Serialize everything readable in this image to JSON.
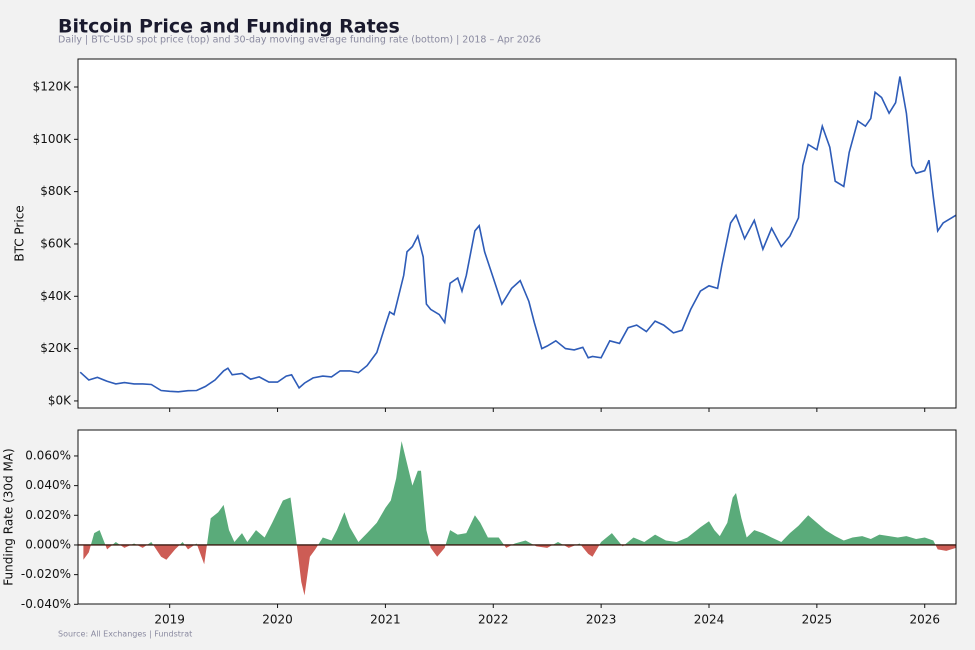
{
  "title": "Bitcoin Price and Funding Rates",
  "subtitle": "Daily  |  BTC-USD spot price (top) and 30-day moving average funding rate (bottom)  |  2018 – Apr 2026",
  "source": "Source: All Exchanges | Fundstrat",
  "chart_data": [
    {
      "type": "line",
      "ylabel": "BTC Price",
      "x": [
        2018.17,
        2018.25,
        2018.33,
        2018.42,
        2018.5,
        2018.58,
        2018.67,
        2018.75,
        2018.83,
        2018.92,
        2019.0,
        2019.08,
        2019.17,
        2019.25,
        2019.33,
        2019.42,
        2019.5,
        2019.54,
        2019.58,
        2019.67,
        2019.75,
        2019.83,
        2019.92,
        2020.0,
        2020.08,
        2020.13,
        2020.2,
        2020.25,
        2020.33,
        2020.42,
        2020.5,
        2020.58,
        2020.67,
        2020.75,
        2020.83,
        2020.92,
        2021.0,
        2021.04,
        2021.08,
        2021.17,
        2021.2,
        2021.25,
        2021.3,
        2021.35,
        2021.38,
        2021.42,
        2021.5,
        2021.55,
        2021.6,
        2021.67,
        2021.71,
        2021.75,
        2021.83,
        2021.87,
        2021.92,
        2022.0,
        2022.08,
        2022.17,
        2022.25,
        2022.33,
        2022.38,
        2022.45,
        2022.5,
        2022.58,
        2022.67,
        2022.75,
        2022.83,
        2022.88,
        2022.92,
        2023.0,
        2023.08,
        2023.17,
        2023.25,
        2023.33,
        2023.42,
        2023.5,
        2023.58,
        2023.67,
        2023.75,
        2023.83,
        2023.92,
        2024.0,
        2024.08,
        2024.12,
        2024.2,
        2024.25,
        2024.33,
        2024.42,
        2024.5,
        2024.58,
        2024.67,
        2024.75,
        2024.83,
        2024.87,
        2024.92,
        2025.0,
        2025.05,
        2025.12,
        2025.17,
        2025.25,
        2025.3,
        2025.38,
        2025.45,
        2025.5,
        2025.54,
        2025.6,
        2025.67,
        2025.73,
        2025.77,
        2025.83,
        2025.88,
        2025.92,
        2026.0,
        2026.04,
        2026.08,
        2026.12,
        2026.17,
        2026.25,
        2026.29
      ],
      "series": [
        {
          "name": "BTC Price",
          "color": "#2e5cb8",
          "values": [
            11000,
            8000,
            9000,
            7500,
            6500,
            7000,
            6500,
            6500,
            6300,
            4000,
            3700,
            3500,
            3900,
            4000,
            5500,
            8000,
            11500,
            12500,
            10000,
            10500,
            8300,
            9200,
            7200,
            7200,
            9500,
            10000,
            5000,
            6800,
            8800,
            9500,
            9200,
            11500,
            11500,
            10800,
            13500,
            18500,
            29000,
            34000,
            33000,
            48000,
            57000,
            59000,
            63000,
            55000,
            37000,
            35000,
            33000,
            30000,
            45000,
            47000,
            42000,
            48000,
            65000,
            67000,
            57000,
            47000,
            37000,
            43000,
            46000,
            38000,
            30000,
            20000,
            21000,
            23000,
            20000,
            19500,
            20500,
            16500,
            17000,
            16500,
            23000,
            22000,
            28000,
            29000,
            26500,
            30500,
            29000,
            26000,
            27000,
            35000,
            42000,
            44000,
            43000,
            52000,
            68000,
            71000,
            62000,
            69000,
            58000,
            66000,
            59000,
            63000,
            70000,
            90000,
            98000,
            96000,
            105000,
            97000,
            84000,
            82000,
            95000,
            107000,
            105000,
            108000,
            118000,
            116000,
            110000,
            114000,
            124000,
            110000,
            90000,
            87000,
            88000,
            92000,
            78000,
            65000,
            68000,
            70000,
            71000
          ]
        }
      ],
      "xlim": [
        2018.15,
        2026.29
      ],
      "ylim": [
        -2700,
        130700
      ],
      "yticks": [
        {
          "value": 0,
          "label": "$0K"
        },
        {
          "value": 20000,
          "label": "$20K"
        },
        {
          "value": 40000,
          "label": "$40K"
        },
        {
          "value": 60000,
          "label": "$60K"
        },
        {
          "value": 80000,
          "label": "$80K"
        },
        {
          "value": 100000,
          "label": "$100K"
        },
        {
          "value": 120000,
          "label": "$120K"
        }
      ]
    },
    {
      "type": "area",
      "ylabel": "Funding Rate (30d MA)",
      "x": [
        2018.2,
        2018.25,
        2018.3,
        2018.35,
        2018.42,
        2018.5,
        2018.58,
        2018.67,
        2018.75,
        2018.83,
        2018.92,
        2018.97,
        2019.05,
        2019.12,
        2019.17,
        2019.25,
        2019.32,
        2019.38,
        2019.45,
        2019.5,
        2019.55,
        2019.6,
        2019.67,
        2019.72,
        2019.8,
        2019.88,
        2019.95,
        2020.05,
        2020.12,
        2020.17,
        2020.22,
        2020.25,
        2020.3,
        2020.35,
        2020.42,
        2020.5,
        2020.55,
        2020.62,
        2020.67,
        2020.75,
        2020.83,
        2020.92,
        2021.0,
        2021.05,
        2021.1,
        2021.15,
        2021.2,
        2021.25,
        2021.3,
        2021.33,
        2021.38,
        2021.42,
        2021.48,
        2021.55,
        2021.6,
        2021.67,
        2021.75,
        2021.83,
        2021.88,
        2021.95,
        2022.05,
        2022.12,
        2022.2,
        2022.3,
        2022.4,
        2022.5,
        2022.6,
        2022.7,
        2022.8,
        2022.88,
        2022.92,
        2023.0,
        2023.1,
        2023.2,
        2023.3,
        2023.4,
        2023.5,
        2023.6,
        2023.7,
        2023.8,
        2023.92,
        2024.0,
        2024.05,
        2024.1,
        2024.17,
        2024.22,
        2024.25,
        2024.3,
        2024.35,
        2024.42,
        2024.5,
        2024.58,
        2024.67,
        2024.75,
        2024.83,
        2024.92,
        2025.0,
        2025.08,
        2025.17,
        2025.25,
        2025.33,
        2025.42,
        2025.5,
        2025.58,
        2025.67,
        2025.75,
        2025.83,
        2025.92,
        2026.0,
        2026.08,
        2026.12,
        2026.2,
        2026.29
      ],
      "series": [
        {
          "name": "Funding Rate (30d MA)",
          "positive_color": "#5aab7a",
          "negative_color": "#cd5c55",
          "values": [
            -0.01,
            -0.005,
            0.008,
            0.01,
            -0.003,
            0.002,
            -0.002,
            0.001,
            -0.002,
            0.002,
            -0.008,
            -0.01,
            -0.003,
            0.002,
            -0.003,
            0.001,
            -0.013,
            0.018,
            0.022,
            0.027,
            0.01,
            0.002,
            0.008,
            0.002,
            0.01,
            0.005,
            0.015,
            0.03,
            0.032,
            0.005,
            -0.025,
            -0.034,
            -0.008,
            -0.003,
            0.005,
            0.003,
            0.01,
            0.022,
            0.012,
            0.002,
            0.008,
            0.015,
            0.025,
            0.03,
            0.045,
            0.07,
            0.055,
            0.04,
            0.05,
            0.05,
            0.01,
            -0.002,
            -0.008,
            -0.002,
            0.01,
            0.007,
            0.008,
            0.02,
            0.015,
            0.005,
            0.005,
            -0.002,
            0.001,
            0.003,
            -0.001,
            -0.002,
            0.002,
            -0.002,
            0.001,
            -0.006,
            -0.008,
            0.002,
            0.008,
            -0.001,
            0.005,
            0.002,
            0.007,
            0.003,
            0.002,
            0.005,
            0.012,
            0.016,
            0.01,
            0.006,
            0.015,
            0.032,
            0.035,
            0.018,
            0.005,
            0.01,
            0.008,
            0.005,
            0.002,
            0.008,
            0.013,
            0.02,
            0.015,
            0.01,
            0.006,
            0.003,
            0.005,
            0.006,
            0.004,
            0.007,
            0.006,
            0.005,
            0.006,
            0.004,
            0.005,
            0.003,
            -0.003,
            -0.004,
            -0.002
          ]
        }
      ],
      "xlim": [
        2018.15,
        2026.29
      ],
      "ylim": [
        -0.0398,
        0.0775
      ],
      "xticks": [
        2019,
        2020,
        2021,
        2022,
        2023,
        2024,
        2025,
        2026
      ],
      "yticks": [
        {
          "value": -0.04,
          "label": "-0.040%"
        },
        {
          "value": -0.02,
          "label": "-0.020%"
        },
        {
          "value": 0,
          "label": "0.000%"
        },
        {
          "value": 0.02,
          "label": "0.020%"
        },
        {
          "value": 0.04,
          "label": "0.040%"
        },
        {
          "value": 0.06,
          "label": "0.060%"
        }
      ]
    }
  ]
}
